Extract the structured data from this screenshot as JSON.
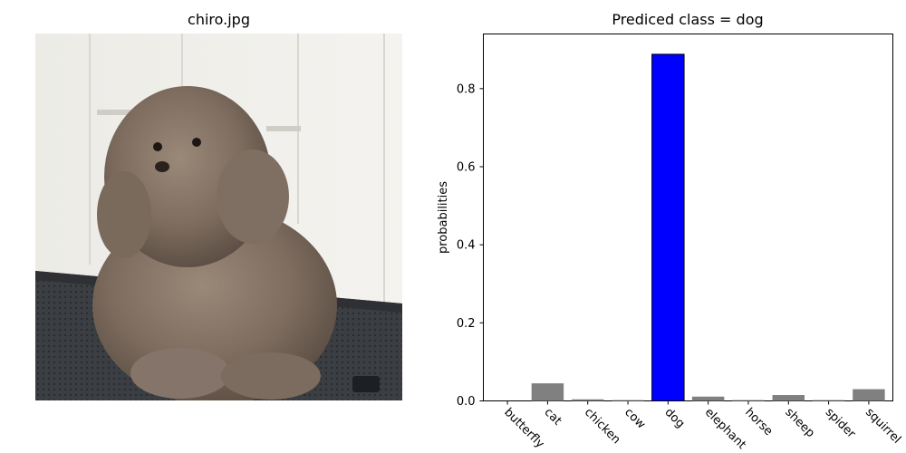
{
  "image_panel": {
    "title": "chiro.jpg"
  },
  "chart_data": {
    "type": "bar",
    "title": "Prediced class = dog",
    "xlabel": "",
    "ylabel": "probabilities",
    "categories": [
      "butterfly",
      "cat",
      "chicken",
      "cow",
      "dog",
      "elephant",
      "horse",
      "sheep",
      "spider",
      "squirrel"
    ],
    "values": [
      0.0,
      0.045,
      0.004,
      0.002,
      0.888,
      0.011,
      0.002,
      0.015,
      0.002,
      0.03
    ],
    "highlight_index": 4,
    "ylim": [
      0,
      0.94
    ],
    "yticks": [
      "0.0",
      "0.2",
      "0.4",
      "0.6",
      "0.8"
    ],
    "colors": {
      "highlight": "#0000ff",
      "default": "#808080"
    }
  }
}
